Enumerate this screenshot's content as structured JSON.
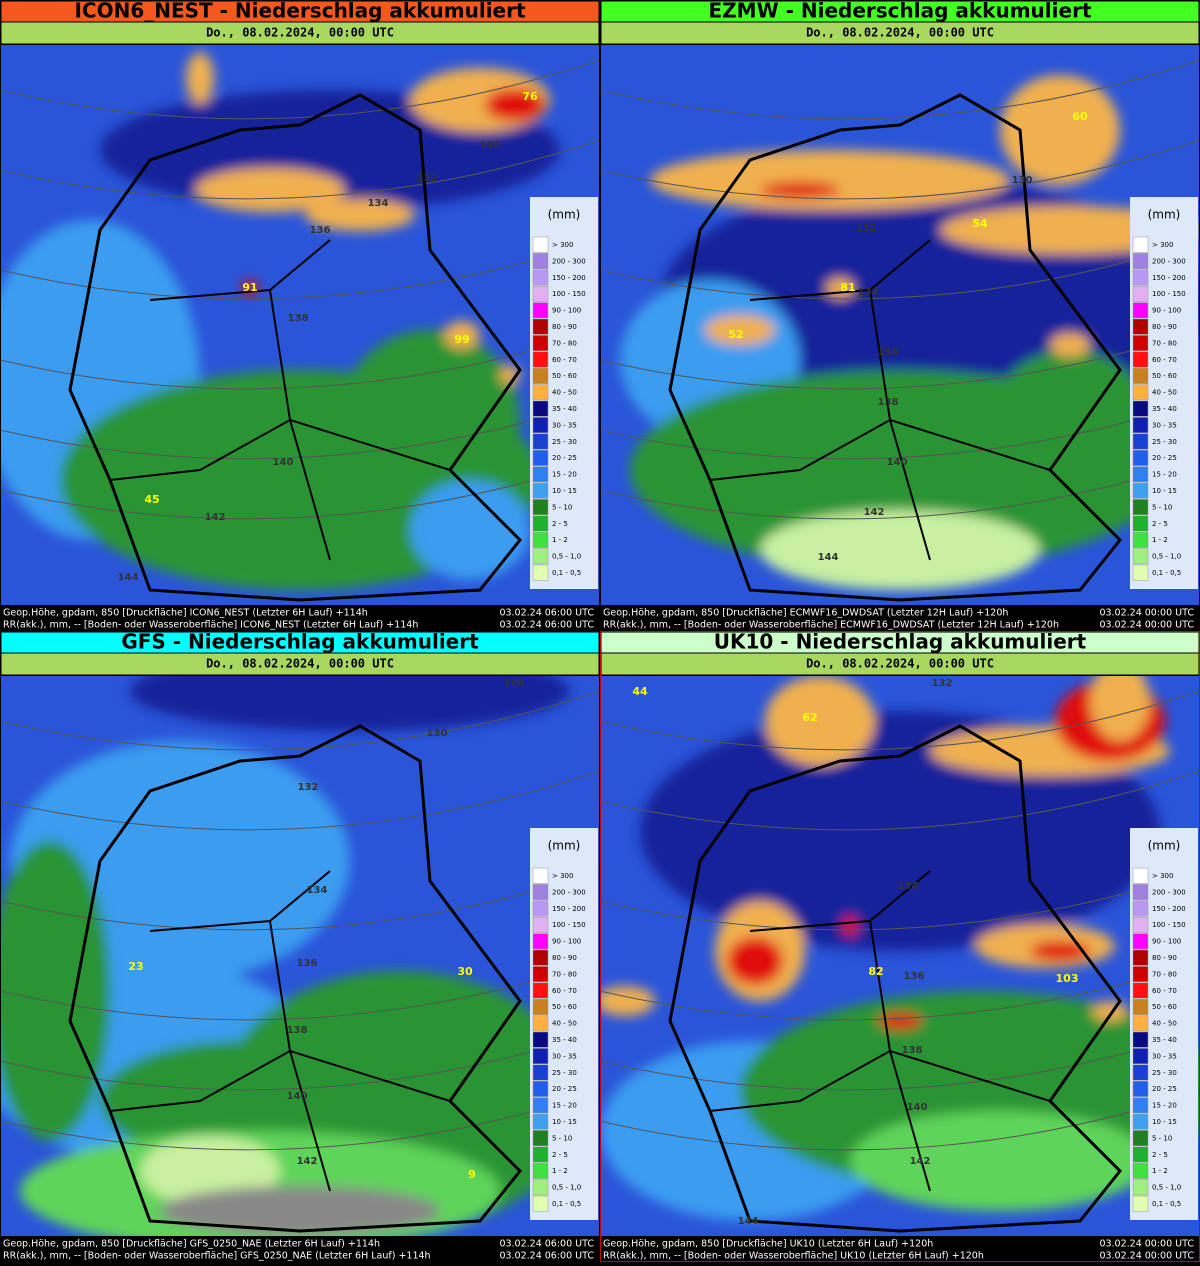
{
  "panels": [
    {
      "title": "ICON6_NEST - Niederschlag akkumuliert",
      "subtitle": "Do., 08.02.2024, 00:00 UTC",
      "footer": [
        {
          "left": "Geop.Höhe, gpdam, 850 [Druckfläche] ICON6_NEST (Letzter  6H Lauf) +114h",
          "right": "03.02.24 06:00 UTC"
        },
        {
          "left": "RR(akk.), mm, -- [Boden- oder Wasseroberfläche] ICON6_NEST (Letzter  6H Lauf) +114h",
          "right": "03.02.24 06:00 UTC"
        }
      ],
      "map_labels": [
        "76",
        "130",
        "132",
        "134",
        "136",
        "91",
        "138",
        "99",
        "140",
        "45",
        "142",
        "144"
      ]
    },
    {
      "title": "EZMW - Niederschlag akkumuliert",
      "subtitle": "Do., 08.02.2024, 00:00 UTC",
      "footer": [
        {
          "left": "Geop.Höhe, gpdam, 850 [Druckfläche] ECMWF16_DWDSAT (Letzter 12H Lauf) +120h",
          "right": "03.02.24 00:00 UTC"
        },
        {
          "left": "RR(akk.), mm, -- [Boden- oder Wasseroberfläche] ECMWF16_DWDSAT (Letzter 12H Lauf) +120h",
          "right": "03.02.24 00:00 UTC"
        }
      ],
      "map_labels": [
        "60",
        "130",
        "132",
        "54",
        "81",
        "134",
        "52",
        "136",
        "138",
        "140",
        "142",
        "144"
      ]
    },
    {
      "title": "GFS - Niederschlag akkumuliert",
      "subtitle": "Do., 08.02.2024, 00:00 UTC",
      "footer": [
        {
          "left": "Geop.Höhe, gpdam, 850 [Druckfläche] GFS_0250_NAE (Letzter  6H Lauf) +114h",
          "right": "03.02.24 06:00 UTC"
        },
        {
          "left": "RR(akk.), mm, -- [Boden- oder Wasseroberfläche] GFS_0250_NAE (Letzter  6H Lauf) +114h",
          "right": "03.02.24 06:00 UTC"
        }
      ],
      "map_labels": [
        "128",
        "130",
        "132",
        "134",
        "23",
        "136",
        "30",
        "138",
        "140",
        "142",
        "9"
      ]
    },
    {
      "title": "UK10 - Niederschlag akkumuliert",
      "subtitle": "Do., 08.02.2024, 00:00 UTC",
      "footer": [
        {
          "left": "Geop.Höhe, gpdam, 850 [Druckfläche] UK10 (Letzter  6H Lauf) +120h",
          "right": "03.02.24 00:00 UTC"
        },
        {
          "left": "RR(akk.), mm, -- [Boden- oder Wasseroberfläche] UK10 (Letzter  6H Lauf) +120h",
          "right": "03.02.24 00:00 UTC"
        }
      ],
      "map_labels": [
        "44",
        "132",
        "62",
        "134",
        "136",
        "103",
        "82",
        "138",
        "140",
        "142",
        "144"
      ]
    }
  ],
  "legend": {
    "unit": "(mm)",
    "labels": [
      "> 300",
      "200 - 300",
      "150 - 200",
      "100 - 150",
      "90 - 100",
      "80 - 90",
      "70 - 80",
      "60 - 70",
      "50 - 60",
      "40 - 50",
      "35 - 40",
      "30 - 35",
      "25 - 30",
      "20 - 25",
      "15 - 20",
      "10 - 15",
      "5 - 10",
      "2 - 5",
      "1 - 2",
      "0,5 - 1,0",
      "0,1 - 0,5"
    ]
  }
}
